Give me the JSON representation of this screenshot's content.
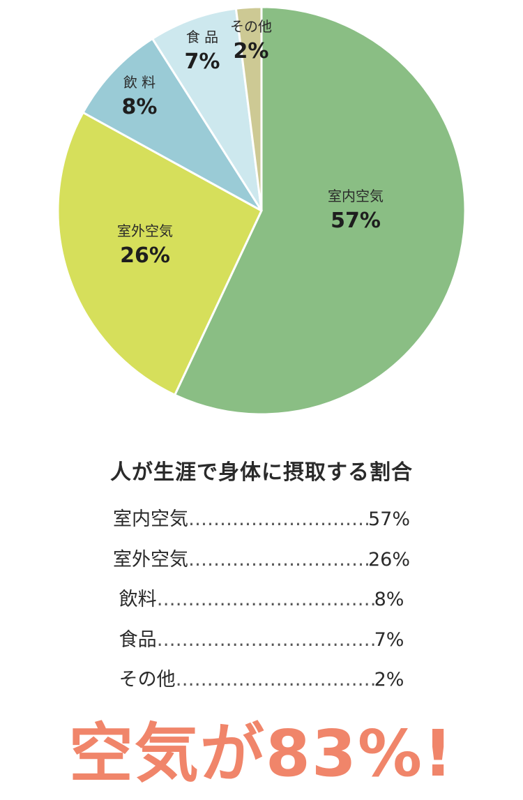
{
  "chart_data": {
    "type": "pie",
    "title": "人が生涯で身体に摂取する割合",
    "slices": [
      {
        "label": "室内空気",
        "legend_label": "室内空気",
        "value": 57,
        "value_label": "57%",
        "color": "#8abe84"
      },
      {
        "label": "室外空気",
        "legend_label": "室外空気",
        "value": 26,
        "value_label": "26%",
        "color": "#d6df5b"
      },
      {
        "label": "飲 料",
        "legend_label": "飲料",
        "value": 8,
        "value_label": "8%",
        "color": "#9acbd6"
      },
      {
        "label": "食 品",
        "legend_label": "食品",
        "value": 7,
        "value_label": "7%",
        "color": "#cde8ee"
      },
      {
        "label": "その他",
        "legend_label": "その他",
        "value": 2,
        "value_label": "2%",
        "color": "#cdc994"
      }
    ]
  },
  "headline": "空気が83%!"
}
